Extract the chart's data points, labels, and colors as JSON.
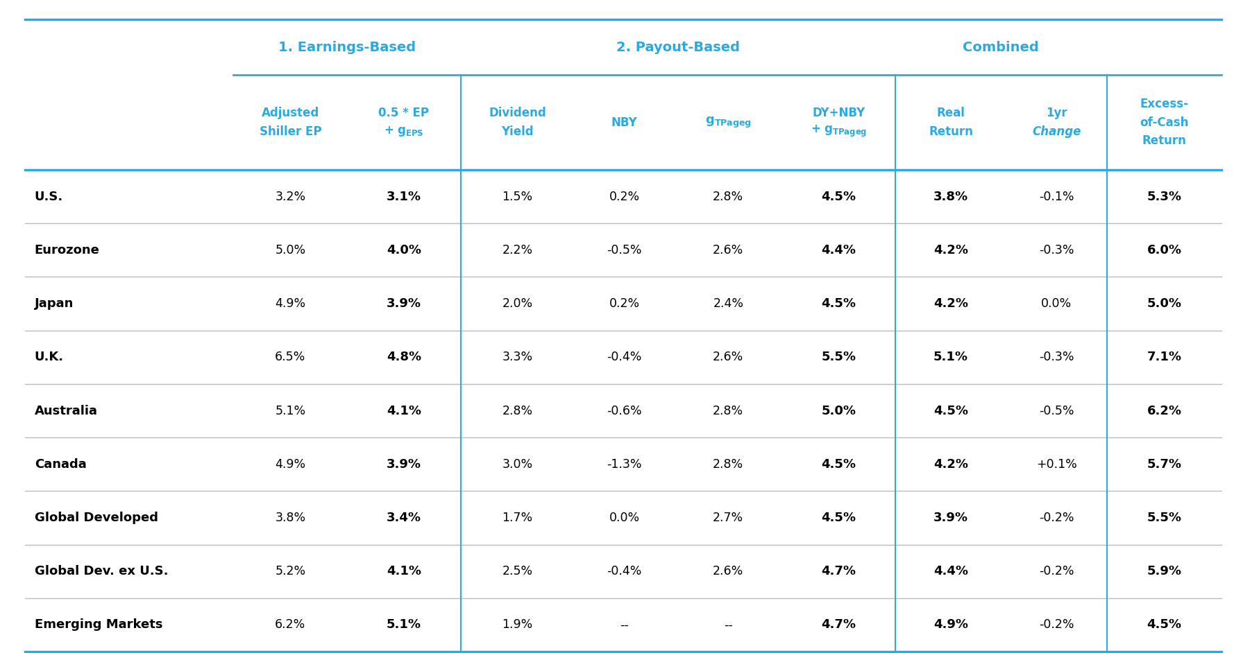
{
  "rows": [
    [
      "U.S.",
      "3.2%",
      "3.1%",
      "1.5%",
      "0.2%",
      "2.8%",
      "4.5%",
      "3.8%",
      "-0.1%",
      "5.3%"
    ],
    [
      "Eurozone",
      "5.0%",
      "4.0%",
      "2.2%",
      "-0.5%",
      "2.6%",
      "4.4%",
      "4.2%",
      "-0.3%",
      "6.0%"
    ],
    [
      "Japan",
      "4.9%",
      "3.9%",
      "2.0%",
      "0.2%",
      "2.4%",
      "4.5%",
      "4.2%",
      "0.0%",
      "5.0%"
    ],
    [
      "U.K.",
      "6.5%",
      "4.8%",
      "3.3%",
      "-0.4%",
      "2.6%",
      "5.5%",
      "5.1%",
      "-0.3%",
      "7.1%"
    ],
    [
      "Australia",
      "5.1%",
      "4.1%",
      "2.8%",
      "-0.6%",
      "2.8%",
      "5.0%",
      "4.5%",
      "-0.5%",
      "6.2%"
    ],
    [
      "Canada",
      "4.9%",
      "3.9%",
      "3.0%",
      "-1.3%",
      "2.8%",
      "4.5%",
      "4.2%",
      "+0.1%",
      "5.7%"
    ],
    [
      "Global Developed",
      "3.8%",
      "3.4%",
      "1.7%",
      "0.0%",
      "2.7%",
      "4.5%",
      "3.9%",
      "-0.2%",
      "5.5%"
    ],
    [
      "Global Dev. ex U.S.",
      "5.2%",
      "4.1%",
      "2.5%",
      "-0.4%",
      "2.6%",
      "4.7%",
      "4.4%",
      "-0.2%",
      "5.9%"
    ],
    [
      "Emerging Markets",
      "6.2%",
      "5.1%",
      "1.9%",
      "--",
      "--",
      "4.7%",
      "4.9%",
      "-0.2%",
      "4.5%"
    ]
  ],
  "bold_data_cols": [
    2,
    6,
    7,
    9
  ],
  "cyan_color": "#29ABE2",
  "gray_line_color": "#BBBBBB",
  "figsize": [
    17.78,
    9.42
  ]
}
